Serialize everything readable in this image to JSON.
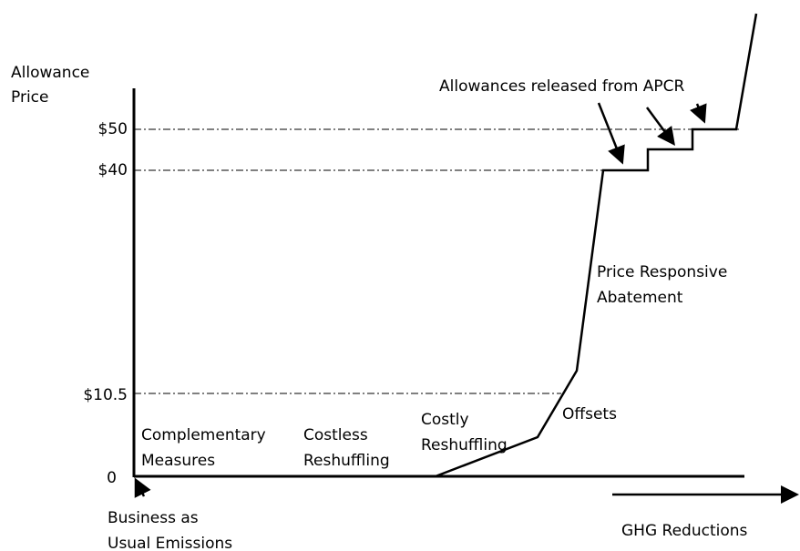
{
  "axis": {
    "y_label": [
      "Allowance",
      "Price"
    ],
    "ticks": [
      "$50",
      "$40",
      "$10.5",
      "0"
    ],
    "x_label": "GHG Reductions"
  },
  "labels": {
    "apcr": "Allowances released from APCR",
    "price_responsive": [
      "Price Responsive",
      "Abatement"
    ],
    "offsets": "Offsets",
    "costly": [
      "Costly",
      "Reshuffling"
    ],
    "costless": [
      "Costless",
      "Reshuffling"
    ],
    "complementary": [
      "Complementary",
      "Measures"
    ],
    "bau": [
      "Business as",
      "Usual Emissions"
    ]
  }
}
